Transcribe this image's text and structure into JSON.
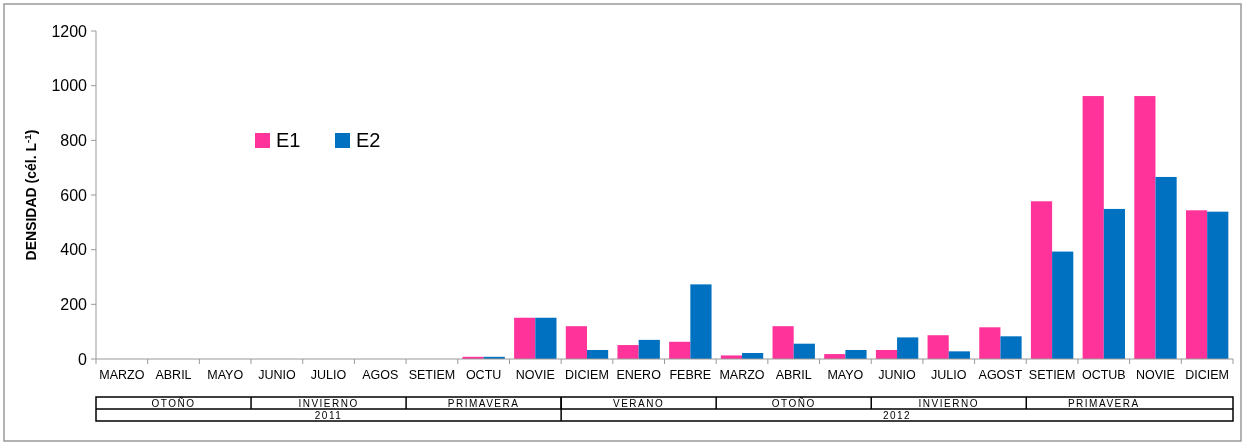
{
  "chart_data": {
    "type": "bar",
    "ylabel": "DENSIDAD (cél. L$^{-1}$)",
    "categories": [
      "MARZO",
      "ABRIL",
      "MAYO",
      "JUNIO",
      "JULIO",
      "AGOS",
      "SETIEM",
      "OCTU",
      "NOVIE",
      "DICIEM",
      "ENERO",
      "FEBRE",
      "MARZO",
      "ABRIL",
      "MAYO",
      "JUNIO",
      "JULIO",
      "AGOST",
      "SETIEM",
      "OCTUB",
      "NOVIE",
      "DICIEM"
    ],
    "series": [
      {
        "name": "E1",
        "color": "#ff3399",
        "values": [
          0,
          0,
          0,
          0,
          0,
          0,
          0,
          8,
          151,
          120,
          51,
          63,
          13,
          120,
          18,
          33,
          87,
          116,
          577,
          962,
          962,
          544
        ]
      },
      {
        "name": "E2",
        "color": "#0070c0",
        "values": [
          0,
          0,
          0,
          0,
          0,
          0,
          0,
          8,
          151,
          33,
          70,
          273,
          22,
          56,
          33,
          79,
          28,
          83,
          393,
          549,
          666,
          539
        ]
      }
    ],
    "ylim": [
      0,
      1200
    ],
    "yticks": [
      0,
      200,
      400,
      600,
      800,
      1000,
      1200
    ],
    "legend": "top left",
    "annotations": [
      "OTOÑO",
      "INVIERNO",
      "PRIMAVERA",
      "VERANO",
      "OTOÑO",
      "INVIERNO",
      "PRIMAVERA",
      "2011",
      "2012"
    ]
  }
}
